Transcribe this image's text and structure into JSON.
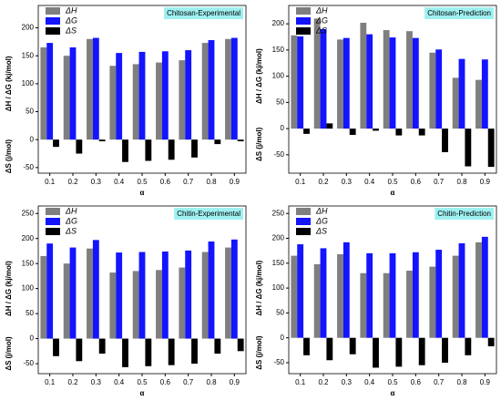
{
  "chart_data": [
    {
      "type": "bar",
      "title": "Chitosan-Experimental",
      "xlabel": "α",
      "ylabel": "ΔH / ΔG (kj/mol)",
      "ylabel2": "ΔS (j/mol)",
      "categories": [
        "0.1",
        "0.2",
        "0.3",
        "0.4",
        "0.5",
        "0.6",
        "0.7",
        "0.8",
        "0.9"
      ],
      "series": [
        {
          "name": "ΔH",
          "color": "#7f7f7f",
          "values": [
            165,
            150,
            180,
            132,
            135,
            138,
            142,
            173,
            180
          ]
        },
        {
          "name": "ΔG",
          "color": "#1414ff",
          "values": [
            173,
            165,
            182,
            155,
            157,
            158,
            160,
            178,
            182
          ]
        },
        {
          "name": "ΔS",
          "color": "#000000",
          "values": [
            -13,
            -25,
            -3,
            -40,
            -38,
            -36,
            -32,
            -8,
            -3
          ]
        }
      ],
      "ylim": [
        -60,
        240
      ],
      "yticks": [
        -50,
        0,
        50,
        100,
        150,
        200
      ],
      "legend": "top-left"
    },
    {
      "type": "bar",
      "title": "Chitosan-Prediction",
      "xlabel": "α",
      "ylabel": "ΔH / ΔG (kj/mol)",
      "ylabel2": "ΔS (j/mol)",
      "categories": [
        "0.1",
        "0.2",
        "0.3",
        "0.4",
        "0.5",
        "0.6",
        "0.7",
        "0.8",
        "0.9"
      ],
      "series": [
        {
          "name": "ΔH",
          "color": "#7f7f7f",
          "values": [
            178,
            210,
            170,
            202,
            188,
            186,
            145,
            97,
            93
          ]
        },
        {
          "name": "ΔG",
          "color": "#1414ff",
          "values": [
            176,
            190,
            173,
            180,
            174,
            173,
            151,
            133,
            132
          ]
        },
        {
          "name": "ΔS",
          "color": "#000000",
          "values": [
            -10,
            10,
            -12,
            -4,
            -13,
            -13,
            -45,
            -72,
            -73
          ]
        }
      ],
      "ylim": [
        -85,
        235
      ],
      "yticks": [
        -50,
        0,
        50,
        100,
        150,
        200
      ],
      "legend": "top-left"
    },
    {
      "type": "bar",
      "title": "Chitin-Experimental",
      "xlabel": "α",
      "ylabel": "ΔH / ΔG (kj/mol)",
      "ylabel2": "ΔS (j/mol)",
      "categories": [
        "0.1",
        "0.2",
        "0.3",
        "0.4",
        "0.5",
        "0.6",
        "0.7",
        "0.8",
        "0.9"
      ],
      "series": [
        {
          "name": "ΔH",
          "color": "#7f7f7f",
          "values": [
            165,
            150,
            180,
            132,
            135,
            137,
            142,
            173,
            182
          ]
        },
        {
          "name": "ΔG",
          "color": "#1414ff",
          "values": [
            190,
            182,
            197,
            172,
            173,
            174,
            176,
            194,
            198
          ]
        },
        {
          "name": "ΔS",
          "color": "#000000",
          "values": [
            -35,
            -45,
            -30,
            -57,
            -55,
            -53,
            -50,
            -30,
            -25
          ]
        }
      ],
      "ylim": [
        -70,
        265
      ],
      "yticks": [
        -50,
        0,
        50,
        100,
        150,
        200,
        250
      ],
      "legend": "top-left"
    },
    {
      "type": "bar",
      "title": "Chitin-Prediction",
      "xlabel": "α",
      "ylabel": "ΔH / ΔG (kj/mol)",
      "ylabel2": "ΔS (j/mol)",
      "categories": [
        "0.1",
        "0.2",
        "0.3",
        "0.4",
        "0.5",
        "0.6",
        "0.7",
        "0.8",
        "0.9"
      ],
      "series": [
        {
          "name": "ΔH",
          "color": "#7f7f7f",
          "values": [
            165,
            148,
            168,
            130,
            130,
            135,
            143,
            165,
            192
          ]
        },
        {
          "name": "ΔG",
          "color": "#1414ff",
          "values": [
            188,
            180,
            192,
            170,
            170,
            172,
            177,
            190,
            203
          ]
        },
        {
          "name": "ΔS",
          "color": "#000000",
          "values": [
            -35,
            -45,
            -33,
            -60,
            -58,
            -55,
            -50,
            -35,
            -17
          ]
        }
      ],
      "ylim": [
        -72,
        265
      ],
      "yticks": [
        -50,
        0,
        50,
        100,
        150,
        200,
        250
      ],
      "legend": "top-left"
    }
  ]
}
